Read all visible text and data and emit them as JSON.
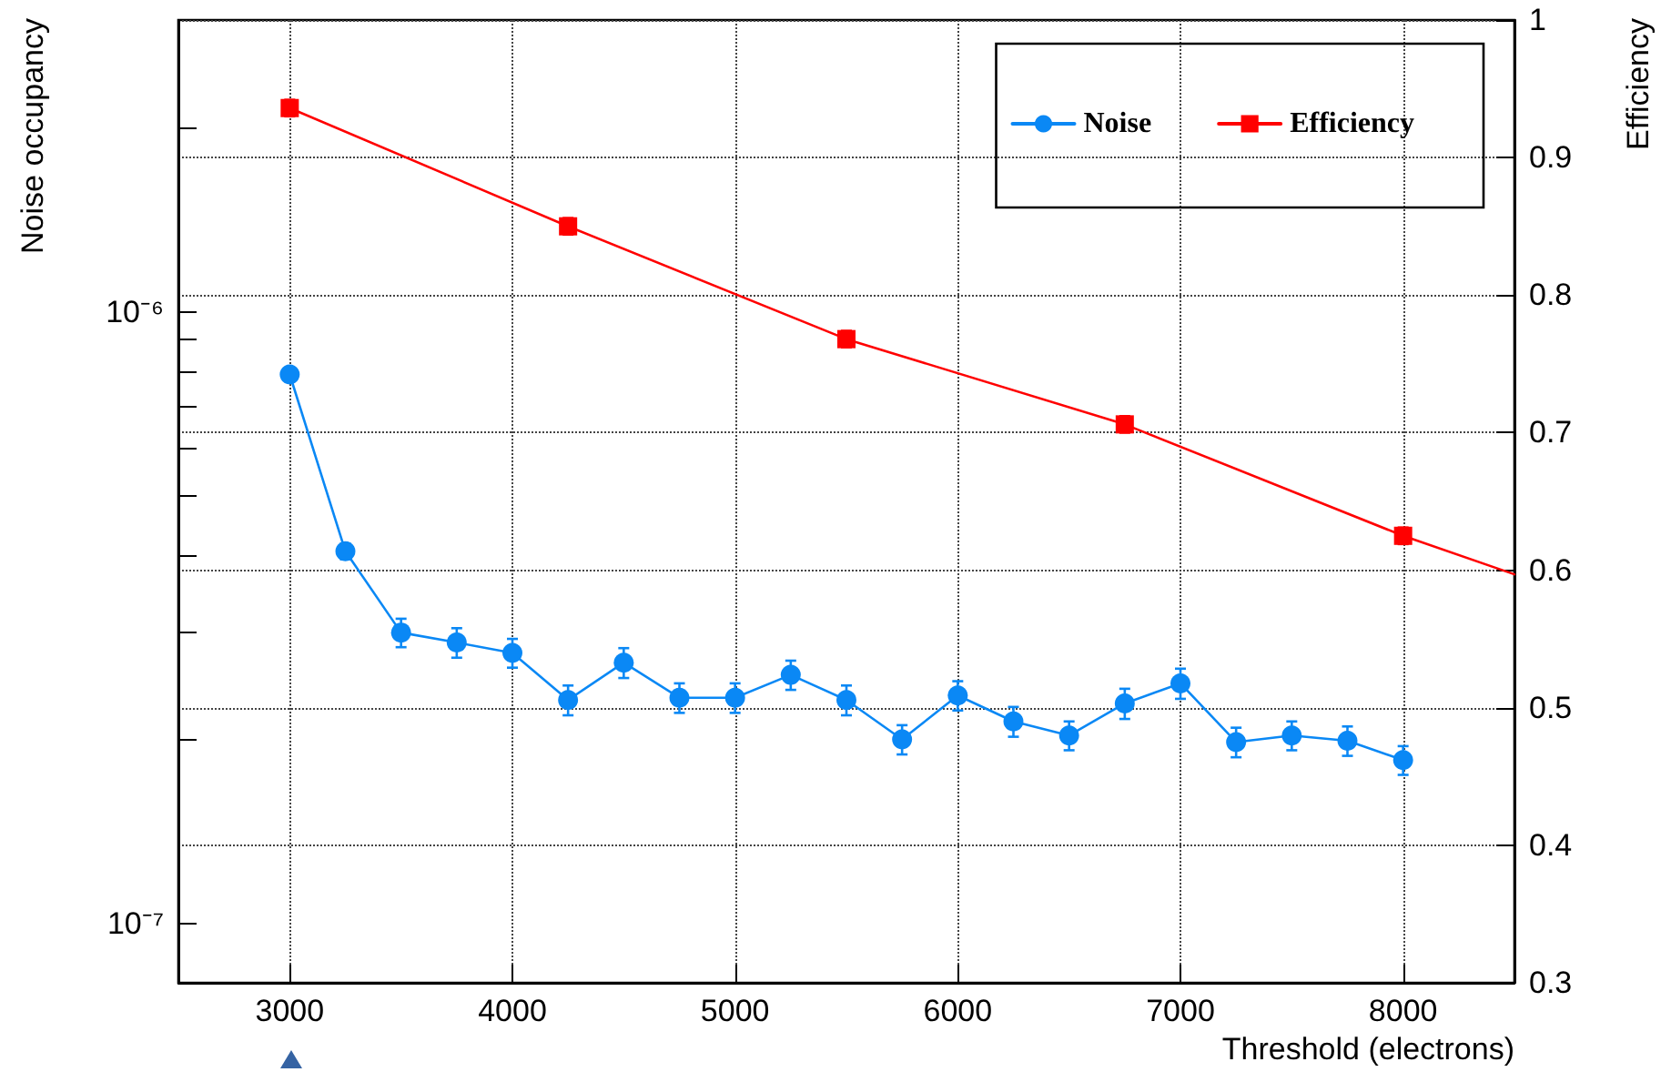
{
  "chart_data": {
    "type": "line",
    "xlabel": "Threshold (electrons)",
    "ylabel": "Noise occupancy",
    "y2label": "Efficiency",
    "x": [
      3000,
      3250,
      3500,
      3750,
      4000,
      4250,
      4500,
      4750,
      5000,
      5250,
      5500,
      5750,
      6000,
      6250,
      6500,
      6750,
      7000,
      7250,
      7500,
      7750,
      8000
    ],
    "series": [
      {
        "name": "Noise",
        "color": "#0a88f5",
        "marker": "circle",
        "values": [
          7.9e-07,
          4.06e-07,
          2.99e-07,
          2.88e-07,
          2.77e-07,
          2.32e-07,
          2.67e-07,
          2.34e-07,
          2.34e-07,
          2.55e-07,
          2.32e-07,
          2e-07,
          2.36e-07,
          2.14e-07,
          2.03e-07,
          2.29e-07,
          2.47e-07,
          1.98e-07,
          2.03e-07,
          1.99e-07,
          1.85e-07
        ],
        "errors": [
          2e-08,
          1.2e-08,
          1.6e-08,
          1.6e-08,
          1.5e-08,
          1.3e-08,
          1.5e-08,
          1.3e-08,
          1.3e-08,
          1.4e-08,
          1.3e-08,
          1.1e-08,
          1.3e-08,
          1.2e-08,
          1.1e-08,
          1.3e-08,
          1.4e-08,
          1.1e-08,
          1.1e-08,
          1.1e-08,
          1e-08
        ]
      },
      {
        "name": "Efficiency",
        "color": "#ff0000",
        "marker": "square",
        "axis": "y2",
        "x": [
          3000,
          4250,
          5500,
          6750,
          8000
        ],
        "values": [
          0.936,
          0.85,
          0.768,
          0.706,
          0.625
        ],
        "errors": [
          0.006,
          0.006,
          0.006,
          0.006,
          0.006
        ]
      },
      {
        "color": "#ff0000",
        "marker": "none",
        "axis": "y2",
        "x": [
          8000,
          8500
        ],
        "values": [
          0.625,
          0.597
        ]
      }
    ],
    "log": "y",
    "xlim": [
      2500,
      8500
    ],
    "xticks": [
      3000,
      4000,
      5000,
      6000,
      7000,
      8000
    ],
    "ylim": [
      8e-08,
      3e-06
    ],
    "yticks": [
      {
        "value": 1e-07,
        "label": "10⁻⁷"
      },
      {
        "value": 2e-07,
        "label": null
      },
      {
        "value": 3e-07,
        "label": null
      },
      {
        "value": 4e-07,
        "label": null
      },
      {
        "value": 5e-07,
        "label": null
      },
      {
        "value": 6e-07,
        "label": null
      },
      {
        "value": 7e-07,
        "label": null
      },
      {
        "value": 8e-07,
        "label": null
      },
      {
        "value": 9e-07,
        "label": null
      },
      {
        "value": 1e-06,
        "label": "10⁻⁶"
      },
      {
        "value": 2e-06,
        "label": null
      }
    ],
    "y2lim": [
      0.3,
      1
    ],
    "y2ticks": [
      0.3,
      0.4,
      0.5,
      0.6,
      0.7,
      0.8,
      0.9,
      1
    ],
    "grid": true,
    "legend": "top right",
    "line_style": "solid"
  }
}
